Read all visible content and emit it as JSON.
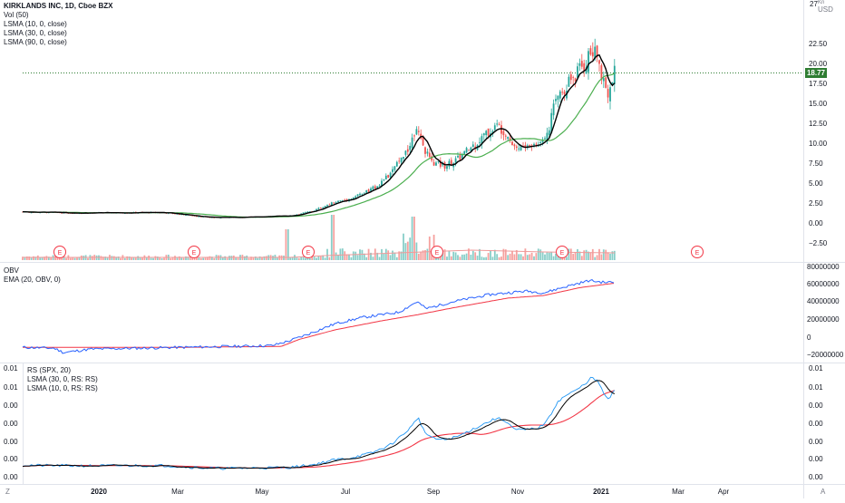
{
  "symbol_title": "KIRKLANDS INC, 1D, Cboe BZX",
  "main_legend": [
    "Vol (50)",
    "LSMA (10, 0, close)",
    "LSMA (30, 0, close)",
    "LSMA (90, 0, close)"
  ],
  "obv_legend": [
    "OBV",
    "EMA (20, OBV, 0)"
  ],
  "rs_legend": [
    "RS (SPX, 20)",
    "LSMA (30, 0, RS: RS)",
    "LSMA (10, 0, RS: RS)"
  ],
  "currency_label": "USD",
  "top_axis_tick": "27",
  "top_axis_unit": "Kn",
  "price_axis": [
    "22.50",
    "20.00",
    "17.50",
    "15.00",
    "12.50",
    "10.00",
    "7.50",
    "5.00",
    "2.50",
    "0.00",
    "−2.50"
  ],
  "last_price": "18.77",
  "obv_axis": [
    "80000000",
    "60000000",
    "40000000",
    "20000000",
    "0",
    "−20000000"
  ],
  "rs_axis_right": [
    "0.01",
    "0.01",
    "0.00",
    "0.00",
    "0.00",
    "0.00",
    "0.00"
  ],
  "rs_axis_left": [
    "0.01",
    "0.01",
    "0.00",
    "0.00",
    "0.00",
    "0.00",
    "0.00"
  ],
  "time_axis": [
    "2020",
    "Mar",
    "May",
    "Jul",
    "Sep",
    "Nov",
    "2021",
    "Mar",
    "Apr"
  ],
  "earnings_marker": "E",
  "corner_left": "Z",
  "corner_right": "A",
  "colors": {
    "up": "#26a69a",
    "down": "#ef5350",
    "lsma10": "#000000",
    "lsma30": "#4caf50",
    "obv": "#2962ff",
    "ema": "#f23645",
    "rs": "#2196f3",
    "rs_lsma30": "#f23645",
    "rs_lsma10": "#000000",
    "last_price_bg": "#2e7d32",
    "grid": "#e0e3eb"
  },
  "chart_data": {
    "type": "line",
    "title": "KIRKLANDS INC, 1D, Cboe BZX",
    "x_axis_labels": [
      "2020",
      "Mar",
      "May",
      "Jul",
      "Sep",
      "Nov",
      "2021"
    ],
    "price_range": [
      -2.5,
      27
    ],
    "last_price": 18.77,
    "price_close_approx": [
      [
        "Dec 2019",
        1.3
      ],
      [
        "2020",
        1.3
      ],
      [
        "Feb",
        1.3
      ],
      [
        "Mar",
        0.8
      ],
      [
        "Apr",
        0.7
      ],
      [
        "May",
        0.8
      ],
      [
        "Jun",
        1.3
      ],
      [
        "Jul",
        2.6
      ],
      [
        "Aug",
        5.5
      ],
      [
        "late Aug",
        12.5
      ],
      [
        "Sep",
        7.8
      ],
      [
        "Oct",
        12.3
      ],
      [
        "Nov",
        9.3
      ],
      [
        "early Dec",
        16.5
      ],
      [
        "Dec",
        19.5
      ],
      [
        "late Dec",
        21.5
      ],
      [
        "2021",
        18.77
      ]
    ],
    "obv_range": [
      -20000000,
      80000000
    ],
    "earnings_events": [
      "Dec 2019",
      "Mar",
      "Jun",
      "Sep",
      "Dec",
      "Mar"
    ]
  }
}
